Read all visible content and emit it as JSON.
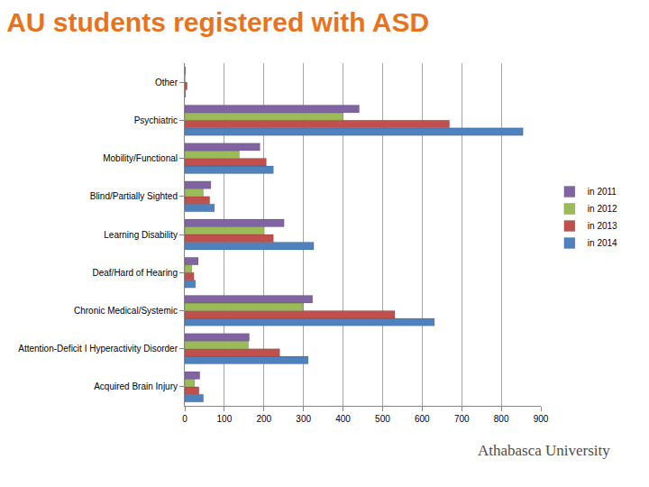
{
  "chart_data": {
    "type": "bar",
    "title": "AU students registered with ASD",
    "orientation": "horizontal",
    "categories": [
      "Acquired Brain Injury",
      "Attention-Deficit I Hyperactivity Disorder",
      "Chronic Medical/Systemic",
      "Deaf/Hard of Hearing",
      "Learning Disability",
      "Blind/Partially Sighted",
      "Mobility/Functional",
      "Psychiatric",
      "Other"
    ],
    "series": [
      {
        "name": "in 2011",
        "color": "#8064a2",
        "values": [
          38,
          163,
          323,
          34,
          251,
          66,
          190,
          441,
          2
        ]
      },
      {
        "name": "in 2012",
        "color": "#9bbb59",
        "values": [
          25,
          161,
          299,
          18,
          201,
          47,
          138,
          400,
          1
        ]
      },
      {
        "name": "in 2013",
        "color": "#c0504d",
        "values": [
          36,
          240,
          531,
          23,
          224,
          63,
          206,
          669,
          6
        ]
      },
      {
        "name": "in 2014",
        "color": "#4f81bd",
        "values": [
          47,
          312,
          631,
          27,
          326,
          75,
          224,
          855,
          2
        ]
      }
    ],
    "xlim": [
      0,
      900
    ],
    "xticks": [
      0,
      100,
      200,
      300,
      400,
      500,
      600,
      700,
      800,
      900
    ],
    "grid": true,
    "legend": "right",
    "annotations": [
      "Athabasca University"
    ]
  }
}
